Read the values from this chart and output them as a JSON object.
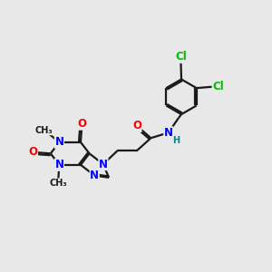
{
  "bg_color": "#e8e8e8",
  "bond_color": "#1a1a1a",
  "atom_colors": {
    "N": "#0000ff",
    "O": "#ff0000",
    "Cl": "#00bb00",
    "C": "#1a1a1a",
    "H": "#008888"
  },
  "font_size": 8.5,
  "fig_size": [
    3.0,
    3.0
  ],
  "dpi": 100
}
